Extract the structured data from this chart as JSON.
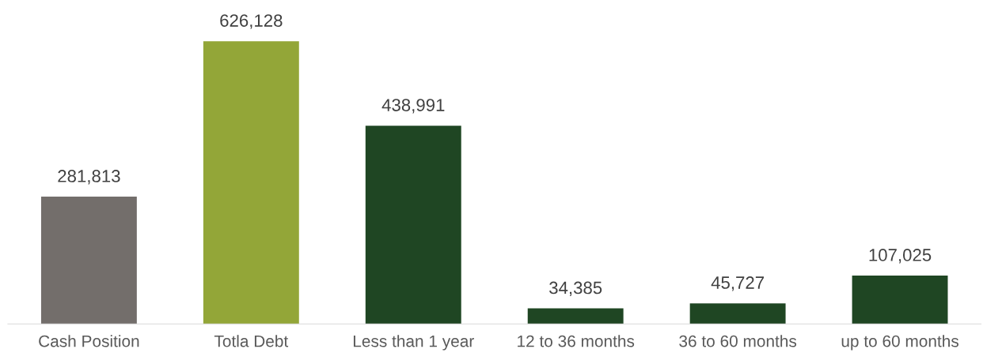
{
  "chart_data": {
    "type": "bar",
    "categories": [
      "Cash Position",
      "Totla Debt",
      "Less than 1 year",
      "12 to 36 months",
      "36 to 60 months",
      "up to 60 months"
    ],
    "values": [
      281813,
      626128,
      438991,
      34385,
      45727,
      107025
    ],
    "colors": [
      "#736e6b",
      "#93a638",
      "#1f4623",
      "#1f4623",
      "#1f4623",
      "#1f4623"
    ],
    "value_labels": [
      "281,813",
      "626,128",
      "438,991",
      "34,385",
      "45,727",
      "107,025"
    ],
    "grid": false,
    "legend": false
  }
}
